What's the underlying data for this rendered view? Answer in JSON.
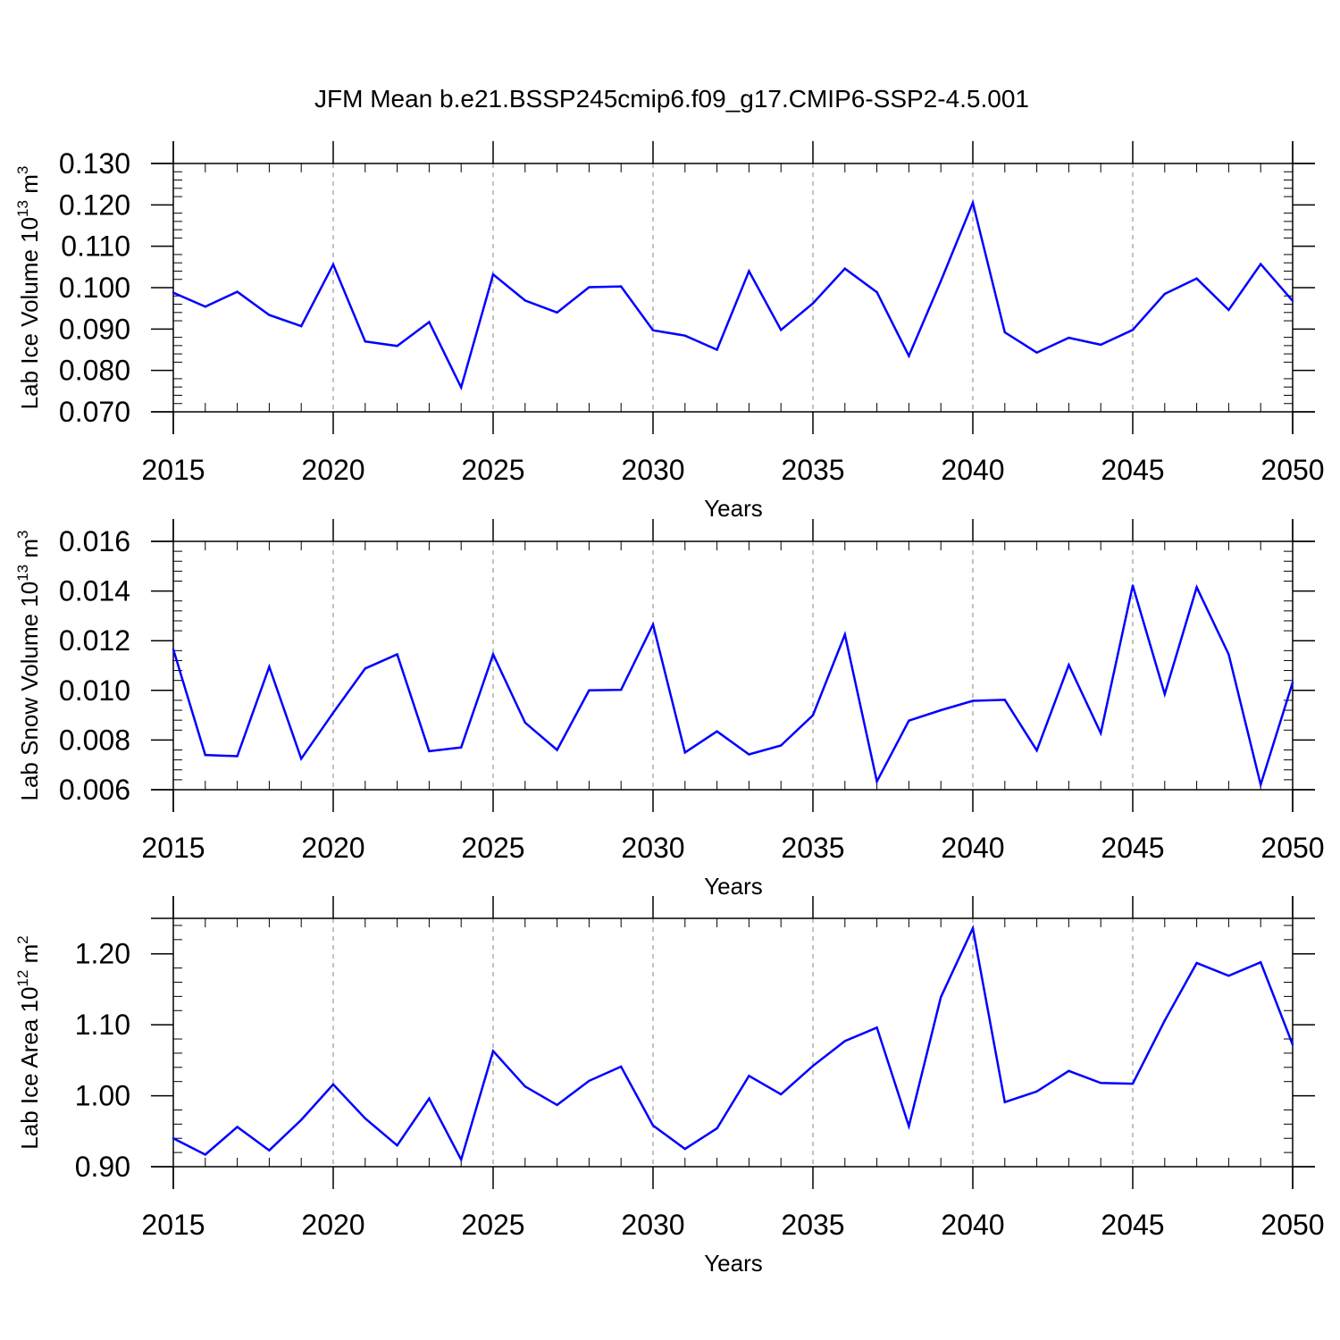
{
  "title": "JFM Mean b.e21.BSSP245cmip6.f09_g17.CMIP6-SSP2-4.5.001",
  "colors": {
    "line": "#0000ff",
    "axis": "#000000",
    "grid": "#999999"
  },
  "chart_data": [
    {
      "type": "line",
      "title": "",
      "ylabel": "Lab Ice Volume 10",
      "ylabel_exp": "13",
      "ylabel_unit": " m",
      "ylabel_unit_exp": "3",
      "xlabel": "Years",
      "xlim": [
        2015,
        2050
      ],
      "ylim": [
        0.07,
        0.13
      ],
      "yticks": [
        0.07,
        0.08,
        0.09,
        0.1,
        0.11,
        0.12,
        0.13
      ],
      "ytick_labels": [
        "0.070",
        "0.080",
        "0.090",
        "0.100",
        "0.110",
        "0.120",
        "0.130"
      ],
      "xticks": [
        2015,
        2020,
        2025,
        2030,
        2035,
        2040,
        2045,
        2050
      ],
      "xtick_labels": [
        "2015",
        "2020",
        "2025",
        "2030",
        "2035",
        "2040",
        "2045",
        "2050"
      ],
      "series": [
        {
          "name": "Lab Ice Volume",
          "x": [
            2015,
            2016,
            2017,
            2018,
            2019,
            2020,
            2021,
            2022,
            2023,
            2024,
            2025,
            2026,
            2027,
            2028,
            2029,
            2030,
            2031,
            2032,
            2033,
            2034,
            2035,
            2036,
            2037,
            2038,
            2039,
            2040,
            2041,
            2042,
            2043,
            2044,
            2045,
            2046,
            2047,
            2048,
            2049,
            2050
          ],
          "values": [
            0.0988,
            0.0954,
            0.099,
            0.0934,
            0.0907,
            0.1056,
            0.087,
            0.0859,
            0.0917,
            0.0759,
            0.1032,
            0.0969,
            0.094,
            0.1001,
            0.1003,
            0.0897,
            0.0884,
            0.085,
            0.104,
            0.0898,
            0.0962,
            0.1046,
            0.0989,
            0.0835,
            0.1016,
            0.1205,
            0.0892,
            0.0843,
            0.0879,
            0.0862,
            0.0898,
            0.0985,
            0.1022,
            0.0946,
            0.1057,
            0.0968
          ]
        }
      ]
    },
    {
      "type": "line",
      "title": "",
      "ylabel": "Lab Snow Volume 10",
      "ylabel_exp": "13",
      "ylabel_unit": " m",
      "ylabel_unit_exp": "3",
      "xlabel": "Years",
      "xlim": [
        2015,
        2050
      ],
      "ylim": [
        0.006,
        0.016
      ],
      "yticks": [
        0.006,
        0.008,
        0.01,
        0.012,
        0.014,
        0.016
      ],
      "ytick_labels": [
        "0.006",
        "0.008",
        "0.010",
        "0.012",
        "0.014",
        "0.016"
      ],
      "xticks": [
        2015,
        2020,
        2025,
        2030,
        2035,
        2040,
        2045,
        2050
      ],
      "xtick_labels": [
        "2015",
        "2020",
        "2025",
        "2030",
        "2035",
        "2040",
        "2045",
        "2050"
      ],
      "series": [
        {
          "name": "Lab Snow Volume",
          "x": [
            2015,
            2016,
            2017,
            2018,
            2019,
            2020,
            2021,
            2022,
            2023,
            2024,
            2025,
            2026,
            2027,
            2028,
            2029,
            2030,
            2031,
            2032,
            2033,
            2034,
            2035,
            2036,
            2037,
            2038,
            2039,
            2040,
            2041,
            2042,
            2043,
            2044,
            2045,
            2046,
            2047,
            2048,
            2049,
            2050
          ],
          "values": [
            0.01165,
            0.0074,
            0.00735,
            0.01095,
            0.00725,
            0.0091,
            0.01088,
            0.01145,
            0.00755,
            0.0077,
            0.01145,
            0.0087,
            0.0076,
            0.01,
            0.01002,
            0.01265,
            0.0075,
            0.00835,
            0.00742,
            0.00778,
            0.009,
            0.01225,
            0.00633,
            0.00878,
            0.0092,
            0.00958,
            0.00962,
            0.00758,
            0.01102,
            0.00828,
            0.01422,
            0.00985,
            0.01415,
            0.01145,
            0.0062,
            0.01032
          ]
        }
      ]
    },
    {
      "type": "line",
      "title": "",
      "ylabel": "Lab Ice Area 10",
      "ylabel_exp": "12",
      "ylabel_unit": " m",
      "ylabel_unit_exp": "2",
      "xlabel": "Years",
      "xlim": [
        2015,
        2050
      ],
      "ylim": [
        0.9,
        1.25
      ],
      "yticks": [
        0.9,
        1.0,
        1.1,
        1.2
      ],
      "ytick_labels": [
        "0.90",
        "1.00",
        "1.10",
        "1.20"
      ],
      "xticks": [
        2015,
        2020,
        2025,
        2030,
        2035,
        2040,
        2045,
        2050
      ],
      "xtick_labels": [
        "2015",
        "2020",
        "2025",
        "2030",
        "2035",
        "2040",
        "2045",
        "2050"
      ],
      "series": [
        {
          "name": "Lab Ice Area",
          "x": [
            2015,
            2016,
            2017,
            2018,
            2019,
            2020,
            2021,
            2022,
            2023,
            2024,
            2025,
            2026,
            2027,
            2028,
            2029,
            2030,
            2031,
            2032,
            2033,
            2034,
            2035,
            2036,
            2037,
            2038,
            2039,
            2040,
            2041,
            2042,
            2043,
            2044,
            2045,
            2046,
            2047,
            2048,
            2049,
            2050
          ],
          "values": [
            0.94,
            0.917,
            0.956,
            0.923,
            0.966,
            1.016,
            0.968,
            0.93,
            0.996,
            0.91,
            1.063,
            1.013,
            0.987,
            1.021,
            1.041,
            0.958,
            0.925,
            0.954,
            1.028,
            1.002,
            1.042,
            1.077,
            1.096,
            0.957,
            1.139,
            1.236,
            0.991,
            1.006,
            1.035,
            1.018,
            1.017,
            1.106,
            1.187,
            1.169,
            1.188,
            1.072
          ]
        }
      ]
    }
  ]
}
